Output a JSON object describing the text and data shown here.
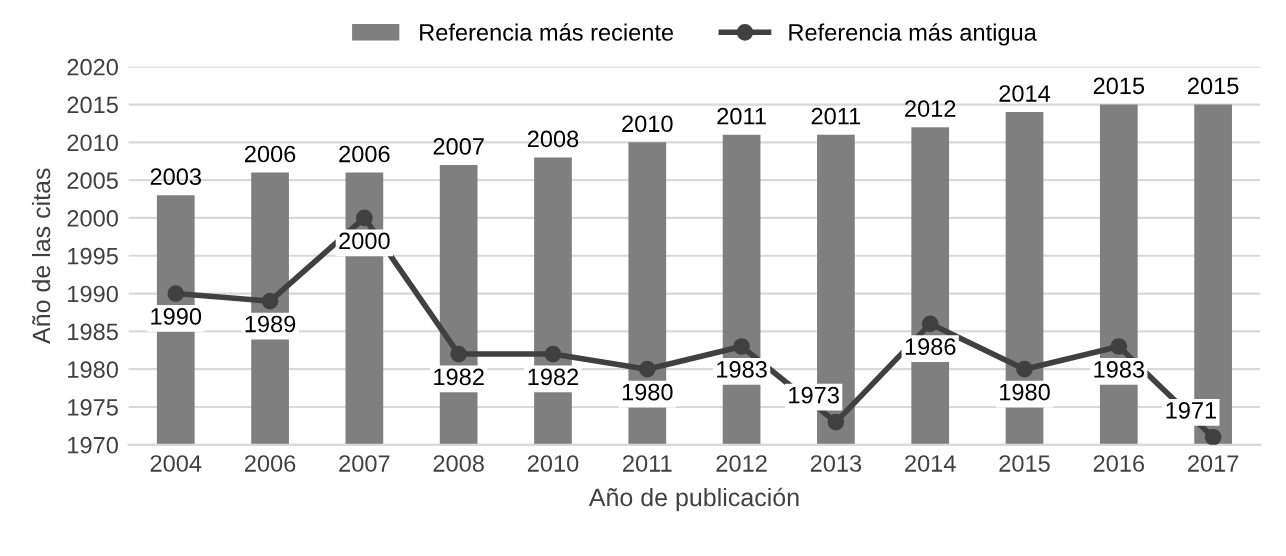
{
  "chart_data": {
    "type": "bar",
    "xlabel": "Año de publicación",
    "ylabel": "Año de las citas",
    "categories": [
      "2004",
      "2006",
      "2007",
      "2008",
      "2010",
      "2011",
      "2012",
      "2013",
      "2014",
      "2015",
      "2016",
      "2017"
    ],
    "series": [
      {
        "name": "Referencia más reciente",
        "color": "#7f7f7f",
        "values": [
          2003,
          2006,
          2006,
          2007,
          2008,
          2010,
          2011,
          2011,
          2012,
          2014,
          2015,
          2015
        ]
      },
      {
        "name": "Referencia más antigua",
        "type": "line",
        "color": "#404040",
        "values": [
          1990,
          1989,
          2000,
          1982,
          1982,
          1980,
          1983,
          1973,
          1986,
          1980,
          1983,
          1971
        ]
      }
    ],
    "ylim": [
      1970,
      2020
    ],
    "yticks": [
      1970,
      1975,
      1980,
      1985,
      1990,
      1995,
      2000,
      2005,
      2010,
      2015,
      2020
    ],
    "grid": "y",
    "legend": "top",
    "marker": "circle",
    "line_style": "solid",
    "data_labels": true
  }
}
